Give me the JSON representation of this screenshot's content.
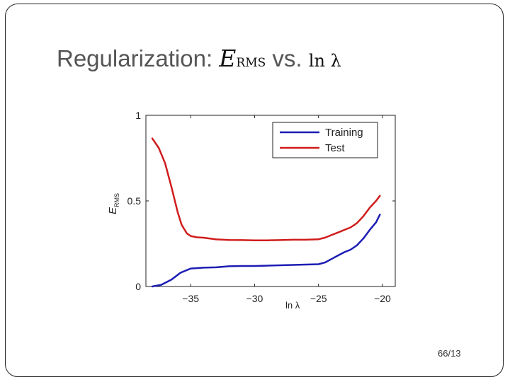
{
  "slide": {
    "title_prefix": "Regularization:",
    "title_math_letter": "E",
    "title_math_sub": "RMS",
    "title_vs": "vs.",
    "title_math_ln": "ln λ",
    "page_number": "66/13"
  },
  "chart_data": {
    "type": "line",
    "title": "",
    "xlabel": "ln λ",
    "ylabel_letter": "E",
    "ylabel_sub": "RMS",
    "xlim": [
      -38.5,
      -19
    ],
    "ylim": [
      0,
      1
    ],
    "xticks": [
      -35,
      -30,
      -25,
      -20
    ],
    "xtick_labels": [
      "−35",
      "−30",
      "−25",
      "−20"
    ],
    "yticks": [
      0,
      0.5,
      1
    ],
    "ytick_labels": [
      "0",
      "0.5",
      "1"
    ],
    "grid": false,
    "legend_position": "top-right",
    "series": [
      {
        "name": "Training",
        "color": "#1c1cb4",
        "x": [
          -38,
          -37.3,
          -36.5,
          -35.8,
          -35,
          -34,
          -33,
          -32,
          -31,
          -30,
          -29,
          -28,
          -27,
          -26,
          -25,
          -24.5,
          -24,
          -23.5,
          -23,
          -22.5,
          -22,
          -21.5,
          -21,
          -20.5,
          -20.2
        ],
        "y": [
          0.0,
          0.01,
          0.04,
          0.08,
          0.105,
          0.11,
          0.112,
          0.118,
          0.12,
          0.12,
          0.122,
          0.124,
          0.126,
          0.128,
          0.13,
          0.14,
          0.16,
          0.18,
          0.2,
          0.215,
          0.24,
          0.28,
          0.33,
          0.375,
          0.42
        ]
      },
      {
        "name": "Test",
        "color": "#d01c1c",
        "x": [
          -38,
          -37.5,
          -37,
          -36.5,
          -36,
          -35.7,
          -35.3,
          -35,
          -34.5,
          -34,
          -33,
          -32,
          -31,
          -30,
          -29,
          -28,
          -27,
          -26,
          -25,
          -24.5,
          -24,
          -23.5,
          -23,
          -22.5,
          -22,
          -21.5,
          -21,
          -20.5,
          -20.2
        ],
        "y": [
          0.865,
          0.81,
          0.72,
          0.58,
          0.43,
          0.36,
          0.31,
          0.295,
          0.287,
          0.285,
          0.275,
          0.272,
          0.271,
          0.27,
          0.27,
          0.271,
          0.273,
          0.273,
          0.276,
          0.285,
          0.3,
          0.315,
          0.33,
          0.345,
          0.37,
          0.41,
          0.46,
          0.5,
          0.53
        ]
      }
    ]
  }
}
